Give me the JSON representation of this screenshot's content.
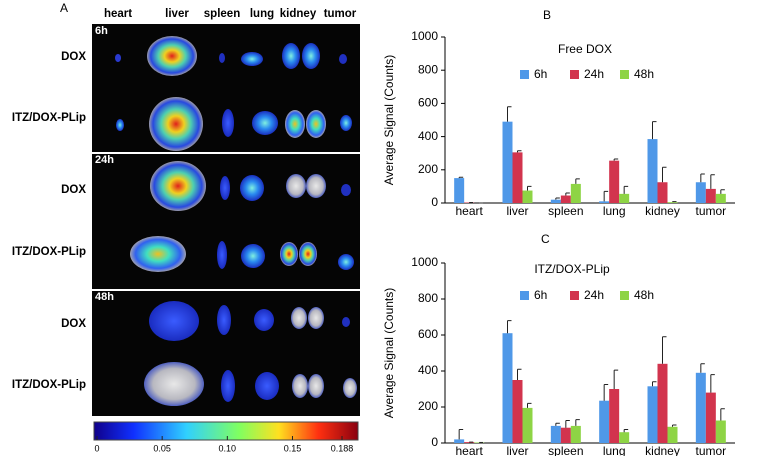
{
  "panel_a": {
    "label": "A",
    "organs": [
      "heart",
      "liver",
      "spleen",
      "lung",
      "kidney",
      "tumor"
    ],
    "times": [
      "6h",
      "24h",
      "48h"
    ],
    "rows": [
      "DOX",
      "ITZ/DOX-PLip",
      "DOX",
      "ITZ/DOX-PLip",
      "DOX",
      "ITZ/DOX-PLip"
    ],
    "colorbar_ticks": [
      0,
      0.05,
      {
        "value": 0.1,
        "label": "0.10"
      },
      0.15,
      0.188
    ]
  },
  "chart_data": [
    {
      "type": "bar",
      "label": "B",
      "title": "Free DOX",
      "y_label": "Average Signal (Counts)",
      "categories": [
        "heart",
        "liver",
        "spleen",
        "lung",
        "kidney",
        "tumor"
      ],
      "series": [
        {
          "name": "6h",
          "color": "#4f98e8",
          "values": [
            150,
            490,
            20,
            10,
            385,
            125
          ],
          "errors": [
            5,
            90,
            10,
            60,
            105,
            50
          ]
        },
        {
          "name": "24h",
          "color": "#d2344e",
          "values": [
            3,
            305,
            45,
            255,
            125,
            85
          ],
          "errors": [
            0,
            10,
            15,
            10,
            90,
            85
          ]
        },
        {
          "name": "48h",
          "color": "#8ed445",
          "values": [
            0,
            75,
            115,
            55,
            5,
            55
          ],
          "errors": [
            0,
            25,
            30,
            45,
            3,
            25
          ]
        }
      ],
      "ylim": [
        0,
        1000
      ],
      "yticks": [
        0,
        200,
        400,
        600,
        800,
        1000
      ]
    },
    {
      "type": "bar",
      "label": "C",
      "title": "ITZ/DOX-PLip",
      "y_label": "Average  Signal (Counts)",
      "categories": [
        "heart",
        "liver",
        "spleen",
        "lung",
        "kidney",
        "tumor"
      ],
      "series": [
        {
          "name": "6h",
          "color": "#4f98e8",
          "values": [
            20,
            610,
            95,
            235,
            315,
            390
          ],
          "errors": [
            55,
            70,
            15,
            90,
            25,
            50
          ]
        },
        {
          "name": "24h",
          "color": "#d2344e",
          "values": [
            5,
            350,
            85,
            300,
            440,
            280
          ],
          "errors": [
            0,
            60,
            40,
            105,
            150,
            100
          ]
        },
        {
          "name": "48h",
          "color": "#8ed445",
          "values": [
            3,
            195,
            95,
            60,
            90,
            125
          ],
          "errors": [
            0,
            25,
            35,
            15,
            10,
            65
          ]
        }
      ],
      "ylim": [
        0,
        1000
      ],
      "yticks": [
        0,
        200,
        400,
        600,
        800,
        1000
      ]
    }
  ]
}
